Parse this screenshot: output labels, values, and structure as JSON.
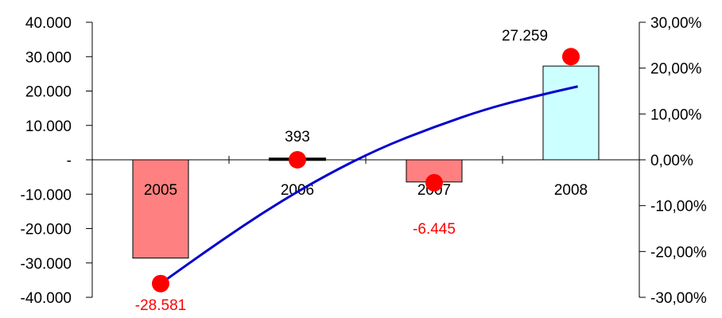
{
  "chart_data": {
    "type": "bar",
    "categories": [
      "2005",
      "2006",
      "2007",
      "2008"
    ],
    "series": [
      {
        "type": "bar",
        "axis": "left",
        "values": [
          -28581,
          393,
          -6445,
          27259
        ],
        "labels": [
          "-28.581",
          "393",
          "-6.445",
          "27.259"
        ],
        "fills": [
          "#ff8080",
          "#ff8080",
          "#ff8080",
          "#ccffff"
        ],
        "label_colors": [
          "#ff0000",
          "#000000",
          "#ff0000",
          "#000000"
        ]
      },
      {
        "type": "scatter",
        "axis": "right",
        "values": [
          -27,
          0,
          -5,
          22.5
        ],
        "color": "#ff0000"
      },
      {
        "type": "line",
        "axis": "right",
        "x": [
          0,
          0.4,
          0.8,
          1.2,
          1.6,
          2.0,
          2.4,
          2.8,
          3.05
        ],
        "values": [
          -27,
          -18.5,
          -10.5,
          -3.5,
          2.5,
          7.2,
          11.3,
          14.3,
          16.0
        ],
        "color": "#0000cc"
      }
    ],
    "left_axis": {
      "ylim": [
        -40000,
        40000
      ],
      "ticks": [
        40000,
        30000,
        20000,
        10000,
        0,
        -10000,
        -20000,
        -30000,
        -40000
      ],
      "tick_labels": [
        "40.000",
        "30.000",
        "20.000",
        "10.000",
        "-",
        "-10.000",
        "-20.000",
        "-30.000",
        "-40.000"
      ]
    },
    "right_axis": {
      "ylim": [
        -30,
        30
      ],
      "ticks": [
        30,
        20,
        10,
        0,
        -10,
        -20,
        -30
      ],
      "tick_labels": [
        "30,00%",
        "20,00%",
        "10,00%",
        "0,00%",
        "-10,00%",
        "-20,00%",
        "-30,00%"
      ]
    },
    "grid": false,
    "legend": "none"
  }
}
